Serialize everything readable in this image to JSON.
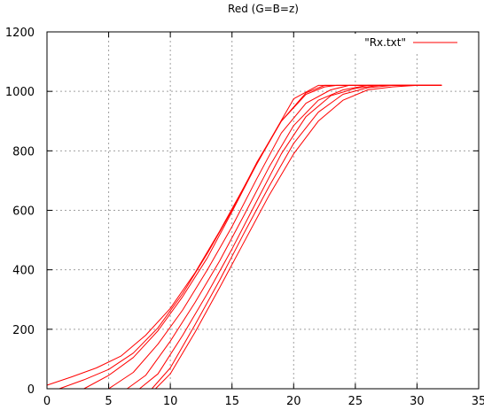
{
  "chart_data": {
    "type": "line",
    "title": "Red (G=B=z)",
    "xlabel": "",
    "ylabel": "",
    "xlim": [
      0,
      35
    ],
    "ylim": [
      0,
      1200
    ],
    "xticks": [
      0,
      5,
      10,
      15,
      20,
      25,
      30,
      35
    ],
    "yticks": [
      0,
      200,
      400,
      600,
      800,
      1000,
      1200
    ],
    "grid": true,
    "legend": {
      "position": "top-right",
      "entries": [
        {
          "label": "\"Rx.txt\"",
          "color": "#ff0000"
        }
      ]
    },
    "line_color": "#ff0000",
    "series": [
      {
        "x": [
          0,
          2,
          4,
          6,
          8,
          10,
          12,
          14,
          16,
          18,
          20,
          22,
          32
        ],
        "y": [
          12,
          40,
          70,
          110,
          180,
          270,
          390,
          530,
          680,
          830,
          975,
          1020,
          1020
        ]
      },
      {
        "x": [
          1,
          3,
          5,
          7,
          9,
          11,
          13,
          15,
          17,
          19,
          21,
          22.5,
          32
        ],
        "y": [
          0,
          30,
          65,
          120,
          205,
          320,
          455,
          600,
          760,
          900,
          995,
          1020,
          1020
        ]
      },
      {
        "x": [
          3,
          5,
          7,
          9,
          11,
          13,
          15,
          17,
          19,
          21,
          22.5,
          23.5,
          32
        ],
        "y": [
          0,
          45,
          105,
          195,
          310,
          440,
          595,
          755,
          900,
          990,
          1015,
          1020,
          1020
        ]
      },
      {
        "x": [
          5,
          7,
          9,
          11,
          13,
          15,
          17,
          19,
          21,
          23,
          24.5,
          32
        ],
        "y": [
          0,
          55,
          150,
          265,
          400,
          545,
          705,
          860,
          960,
          1005,
          1020,
          1020
        ]
      },
      {
        "x": [
          6.5,
          8,
          10,
          12,
          14,
          16,
          18,
          20,
          22,
          24,
          26,
          32
        ],
        "y": [
          0,
          45,
          160,
          290,
          430,
          585,
          745,
          885,
          970,
          1005,
          1020,
          1020
        ]
      },
      {
        "x": [
          7.5,
          9,
          11,
          13,
          15,
          17,
          19,
          21,
          23,
          25,
          27,
          32
        ],
        "y": [
          0,
          50,
          180,
          320,
          470,
          630,
          790,
          915,
          985,
          1010,
          1020,
          1020
        ]
      },
      {
        "x": [
          8.5,
          10,
          12,
          14,
          16,
          18,
          20,
          22,
          24,
          26,
          28,
          32
        ],
        "y": [
          0,
          70,
          215,
          365,
          525,
          680,
          825,
          930,
          990,
          1012,
          1020,
          1020
        ]
      },
      {
        "x": [
          8.8,
          10,
          12,
          14,
          16,
          18,
          20,
          22,
          24,
          26,
          28,
          30,
          32
        ],
        "y": [
          0,
          50,
          190,
          340,
          495,
          650,
          790,
          900,
          970,
          1005,
          1015,
          1020,
          1020
        ]
      }
    ]
  }
}
